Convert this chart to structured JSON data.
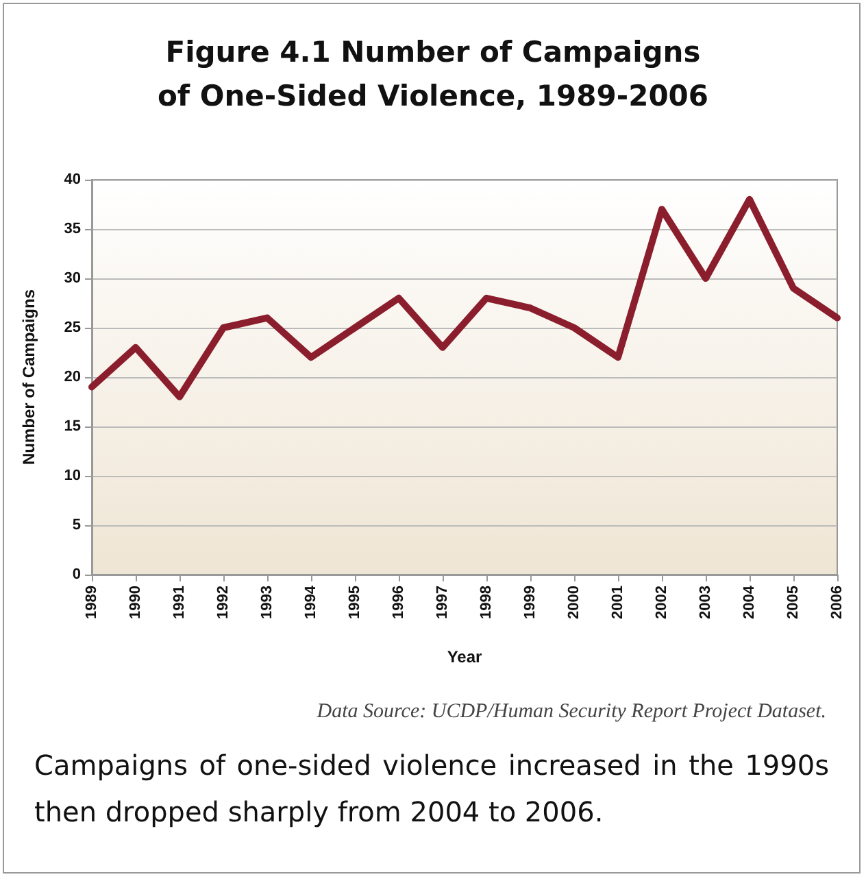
{
  "chart_data": {
    "type": "line",
    "title": "Figure 4.1 Number of Campaigns\nof One-Sided Violence, 1989-2006",
    "xlabel": "Year",
    "ylabel": "Number of Campaigns",
    "categories": [
      "1989",
      "1990",
      "1991",
      "1992",
      "1993",
      "1994",
      "1995",
      "1996",
      "1997",
      "1998",
      "1999",
      "2000",
      "2001",
      "2002",
      "2003",
      "2004",
      "2005",
      "2006"
    ],
    "series": [
      {
        "color": "#8b1e2c",
        "values": [
          19,
          23,
          18,
          25,
          26,
          22,
          25,
          28,
          23,
          28,
          27,
          25,
          22,
          37,
          30,
          38,
          29,
          26
        ]
      }
    ],
    "ylim": [
      0,
      40
    ],
    "yticks": [
      0,
      5,
      10,
      15,
      20,
      25,
      30,
      35,
      40
    ],
    "grid": "y",
    "marker": "none",
    "line_style": "solid",
    "annotations": [
      "Data Source: UCDP/Human Security Report Project Dataset.",
      "Campaigns of one-sided violence increased in the 1990s then dropped sharply from 2004 to 2006."
    ]
  }
}
